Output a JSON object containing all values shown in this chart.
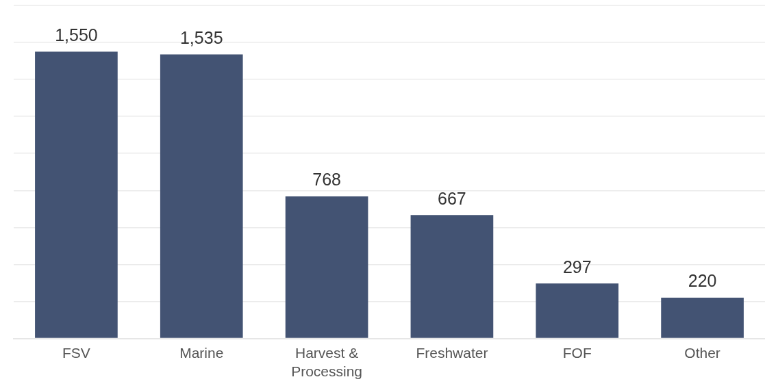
{
  "chart_data": {
    "type": "bar",
    "categories": [
      "FSV",
      "Marine",
      "Harvest & Processing",
      "Freshwater",
      "FOF",
      "Other"
    ],
    "values": [
      1550,
      1535,
      768,
      667,
      297,
      220
    ],
    "color": "#435373",
    "ylim": [
      0,
      1800
    ],
    "yticks": [
      {
        "value": 0,
        "label": null
      },
      {
        "value": 200,
        "label": null
      },
      {
        "value": 400,
        "label": null
      },
      {
        "value": 600,
        "label": null
      },
      {
        "value": 800,
        "label": null
      },
      {
        "value": 1000,
        "label": null
      },
      {
        "value": 1200,
        "label": null
      },
      {
        "value": 1400,
        "label": null
      },
      {
        "value": 1600,
        "label": null
      },
      {
        "value": 1800,
        "label": null
      }
    ],
    "value_labels": [
      "1,550",
      "1,535",
      "768",
      "667",
      "297",
      "220"
    ],
    "grid": "y",
    "tick_labels": "x"
  }
}
